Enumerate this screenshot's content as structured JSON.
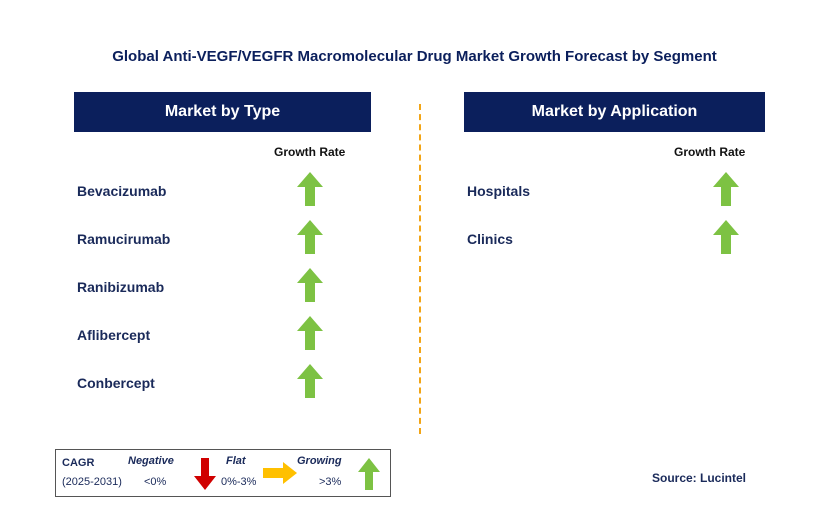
{
  "title": "Global Anti-VEGF/VEGFR Macromolecular Drug Market Growth Forecast by Segment",
  "left_panel": {
    "header": "Market by Type",
    "growth_label": "Growth Rate",
    "items": [
      {
        "label": "Bevacizumab",
        "trend": "growing"
      },
      {
        "label": "Ramucirumab",
        "trend": "growing"
      },
      {
        "label": "Ranibizumab",
        "trend": "growing"
      },
      {
        "label": "Aflibercept",
        "trend": "growing"
      },
      {
        "label": "Conbercept",
        "trend": "growing"
      }
    ]
  },
  "right_panel": {
    "header": "Market by Application",
    "growth_label": "Growth Rate",
    "items": [
      {
        "label": "Hospitals",
        "trend": "growing"
      },
      {
        "label": "Clinics",
        "trend": "growing"
      }
    ]
  },
  "legend": {
    "cagr_label": "CAGR",
    "period": "(2025-2031)",
    "negative": {
      "label": "Negative",
      "range": "<0%"
    },
    "flat": {
      "label": "Flat",
      "range": "0%-3%"
    },
    "growing": {
      "label": "Growing",
      "range": ">3%"
    }
  },
  "source": "Source: Lucintel",
  "colors": {
    "navy": "#0b1f5c",
    "up_arrow": "#7dc243",
    "down_arrow": "#d00000",
    "flat_arrow": "#ffc000",
    "divider": "#f2a516"
  }
}
